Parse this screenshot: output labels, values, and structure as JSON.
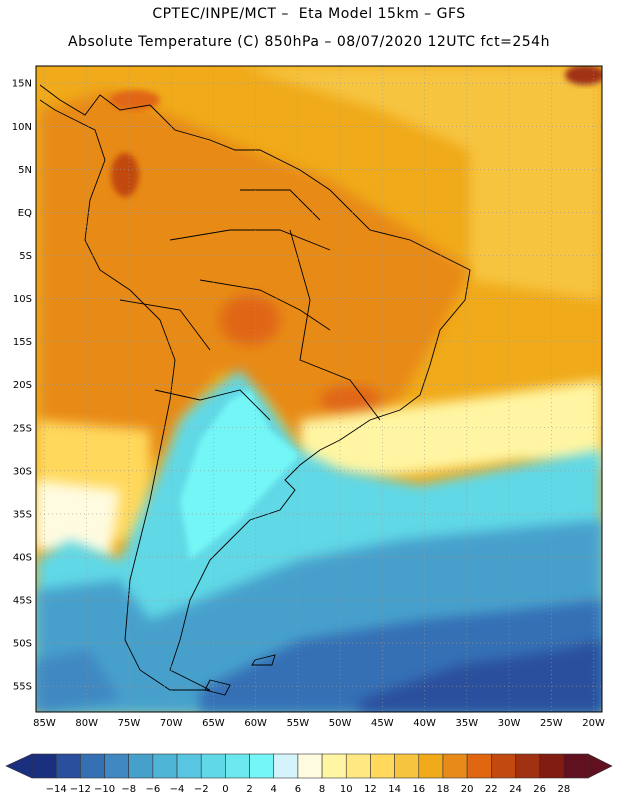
{
  "header": {
    "line1": "CPTEC/INPE/MCT –  Eta Model 15km – GFS",
    "line2": "Absolute Temperature (C) 850hPa – 08/07/2020 12UTC fct=254h"
  },
  "map": {
    "latitude_labels": [
      "15N",
      "10N",
      "5N",
      "EQ",
      "5S",
      "10S",
      "15S",
      "20S",
      "25S",
      "30S",
      "35S",
      "40S",
      "45S",
      "50S",
      "55S"
    ],
    "latitude_values": [
      15,
      10,
      5,
      0,
      -5,
      -10,
      -15,
      -20,
      -25,
      -30,
      -35,
      -40,
      -45,
      -50,
      -55
    ],
    "longitude_labels": [
      "85W",
      "80W",
      "75W",
      "70W",
      "65W",
      "60W",
      "55W",
      "50W",
      "45W",
      "40W",
      "35W",
      "30W",
      "25W",
      "20W"
    ],
    "longitude_values": [
      -85,
      -80,
      -75,
      -70,
      -65,
      -60,
      -55,
      -50,
      -45,
      -40,
      -35,
      -30,
      -25,
      -20
    ],
    "lat_range": [
      -58,
      17
    ],
    "lon_range": [
      -86,
      -19
    ]
  },
  "legend": {
    "labels": [
      "-14",
      "-12",
      "-10",
      "-8",
      "-6",
      "-4",
      "-2",
      "0",
      "2",
      "4",
      "6",
      "8",
      "10",
      "12",
      "14",
      "16",
      "18",
      "20",
      "22",
      "24",
      "26",
      "28"
    ],
    "colors": [
      "#1a2f7d",
      "#2a4f9d",
      "#3570b5",
      "#3f88c2",
      "#47a0cc",
      "#4fb5d6",
      "#58c6e0",
      "#60d8e6",
      "#6ae8ee",
      "#74f6f6",
      "#d4f4fc",
      "#fffbe0",
      "#fff5a2",
      "#ffe882",
      "#ffd85c",
      "#f7c43f",
      "#f0aa1a",
      "#e88a18",
      "#e06612",
      "#c24a10",
      "#a03212",
      "#801c12",
      "#60101e"
    ]
  },
  "colors": {
    "ocean_south_deep": "#1f4fa3",
    "ocean_mid": "#3f86c8",
    "cold_land": "#5fd7e8",
    "warm": "#f2a820",
    "hot": "#e3861a",
    "background": "#ffffff"
  }
}
